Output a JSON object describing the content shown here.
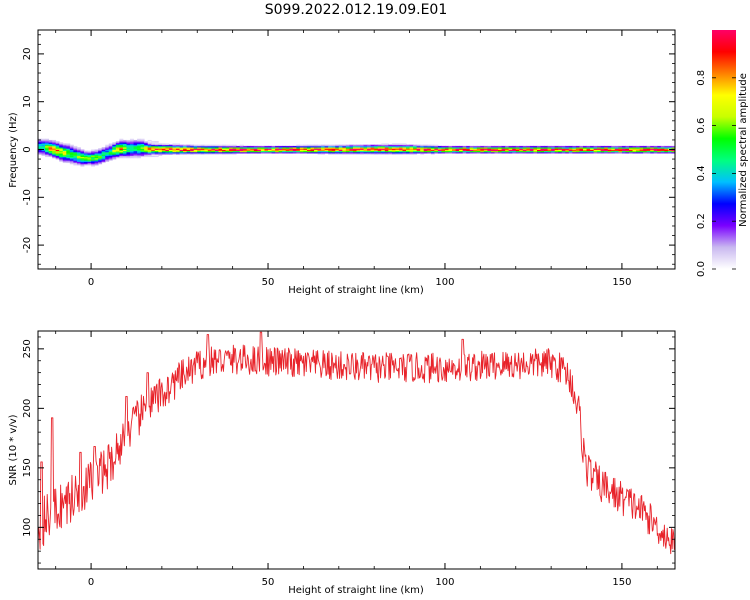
{
  "title": "S099.2022.012.19.09.E01",
  "chart_data": [
    {
      "type": "heatmap",
      "xlabel": "Height of straight line (km)",
      "ylabel": "Frequency (Hz)",
      "xlim": [
        -15,
        165
      ],
      "ylim": [
        -25,
        25
      ],
      "x_ticks": [
        0,
        50,
        100,
        150
      ],
      "y_ticks": [
        -20,
        -10,
        0,
        10,
        20
      ],
      "grid": false,
      "colorbar": {
        "label": "Normalized spectral amplitude",
        "range": [
          0,
          1
        ],
        "ticks": [
          "0.0",
          "0.2",
          "0.4",
          "0.6",
          "0.8"
        ],
        "colormap": [
          "#ffffff",
          "#c9b8f0",
          "#7a00ff",
          "#0000ff",
          "#00bfff",
          "#00ff80",
          "#00ff00",
          "#c8ff00",
          "#ffff00",
          "#ff8000",
          "#ff0000",
          "#ff0066"
        ]
      },
      "ridge": [
        {
          "x": -14,
          "f": 0.6,
          "w": 1.5,
          "a": 0.4
        },
        {
          "x": -11,
          "f": 0.2,
          "w": 1.4,
          "a": 0.85
        },
        {
          "x": -8,
          "f": -0.6,
          "w": 1.6,
          "a": 0.7
        },
        {
          "x": -6,
          "f": -0.8,
          "w": 1.7,
          "a": 0.5
        },
        {
          "x": -3,
          "f": -1.6,
          "w": 1.5,
          "a": 0.55
        },
        {
          "x": -1,
          "f": -1.8,
          "w": 1.2,
          "a": 0.6
        },
        {
          "x": 2,
          "f": -1.6,
          "w": 1.4,
          "a": 0.55
        },
        {
          "x": 5,
          "f": -0.7,
          "w": 1.5,
          "a": 0.4
        },
        {
          "x": 8,
          "f": 0.2,
          "w": 1.4,
          "a": 0.85
        },
        {
          "x": 11,
          "f": 0.2,
          "w": 1.6,
          "a": 0.45
        },
        {
          "x": 14,
          "f": 0.3,
          "w": 1.6,
          "a": 0.5
        },
        {
          "x": 17,
          "f": 0.1,
          "w": 0.9,
          "a": 0.9
        },
        {
          "x": 30,
          "f": 0.0,
          "w": 0.7,
          "a": 0.92
        },
        {
          "x": 50,
          "f": 0.0,
          "w": 0.6,
          "a": 0.95
        },
        {
          "x": 87,
          "f": 0.1,
          "w": 0.8,
          "a": 0.9
        },
        {
          "x": 100,
          "f": 0.0,
          "w": 0.6,
          "a": 0.95
        },
        {
          "x": 130,
          "f": 0.0,
          "w": 0.6,
          "a": 0.95
        },
        {
          "x": 165,
          "f": 0.0,
          "w": 0.6,
          "a": 0.95
        }
      ]
    },
    {
      "type": "line",
      "xlabel": "Height of straight line (km)",
      "ylabel": "SNR (10 * v/v)",
      "xlim": [
        -15,
        165
      ],
      "ylim": [
        65,
        265
      ],
      "x_ticks": [
        0,
        50,
        100,
        150
      ],
      "y_ticks": [
        100,
        150,
        200,
        250
      ],
      "grid": false,
      "series": [
        {
          "color": "#e8232a",
          "points_per_km": 5,
          "trend": [
            [
              -15,
              100
            ],
            [
              -10,
              115
            ],
            [
              -5,
              125
            ],
            [
              0,
              138
            ],
            [
              5,
              152
            ],
            [
              10,
              178
            ],
            [
              15,
              198
            ],
            [
              20,
              212
            ],
            [
              25,
              225
            ],
            [
              30,
              236
            ],
            [
              35,
              240
            ],
            [
              40,
              241
            ],
            [
              50,
              240
            ],
            [
              60,
              237
            ],
            [
              80,
              234
            ],
            [
              100,
              234
            ],
            [
              120,
              237
            ],
            [
              130,
              238
            ],
            [
              134,
              232
            ],
            [
              136,
              220
            ],
            [
              138,
              195
            ],
            [
              139,
              168
            ],
            [
              140,
              150
            ],
            [
              143,
              138
            ],
            [
              148,
              128
            ],
            [
              155,
              116
            ],
            [
              160,
              100
            ],
            [
              165,
              85
            ]
          ],
          "noise": [
            [
              -15,
              14
            ],
            [
              10,
              11
            ],
            [
              30,
              8
            ],
            [
              134,
              8
            ],
            [
              140,
              10
            ],
            [
              165,
              8
            ]
          ],
          "spikes": [
            [
              -14,
              155
            ],
            [
              -11,
              192
            ],
            [
              -3,
              163
            ],
            [
              1,
              168
            ],
            [
              10,
              210
            ],
            [
              16,
              230
            ],
            [
              33,
              262
            ],
            [
              48,
              264
            ],
            [
              105,
              258
            ]
          ]
        }
      ]
    }
  ]
}
